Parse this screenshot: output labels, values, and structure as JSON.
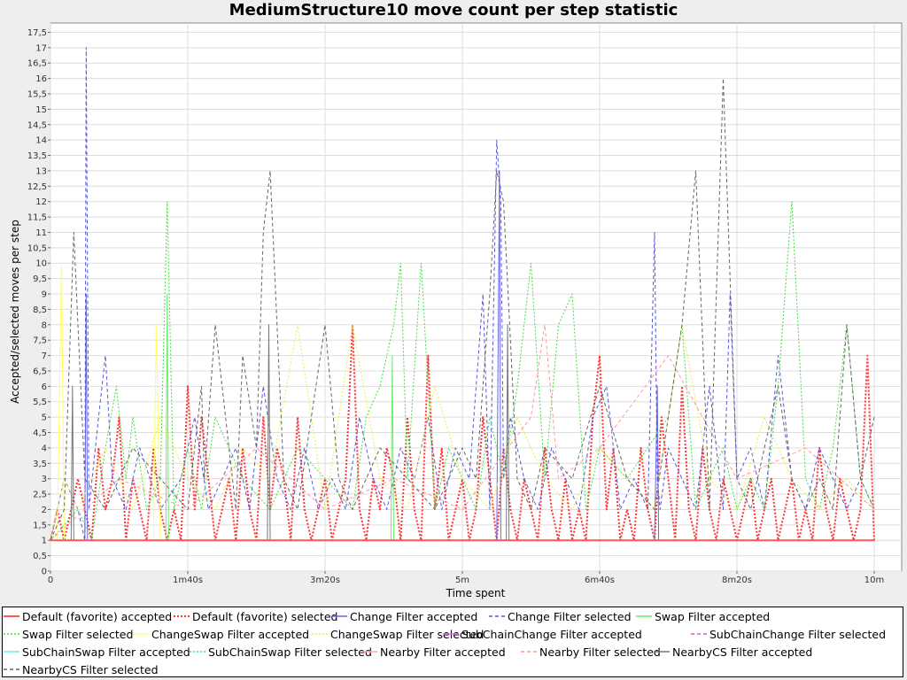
{
  "chart_data": {
    "type": "line",
    "title": "MediumStructure10 move count per step statistic",
    "xlabel": "Time spent",
    "ylabel": "Accepted/selected moves per step",
    "x_unit": "seconds",
    "xlim": [
      0,
      620
    ],
    "ylim": [
      0,
      17.8
    ],
    "x_ticks": [
      {
        "value": 0,
        "label": "0"
      },
      {
        "value": 100,
        "label": "1m40s"
      },
      {
        "value": 200,
        "label": "3m20s"
      },
      {
        "value": 300,
        "label": "5m"
      },
      {
        "value": 400,
        "label": "6m40s"
      },
      {
        "value": 500,
        "label": "8m20s"
      },
      {
        "value": 600,
        "label": "10m"
      }
    ],
    "y_ticks": [
      "0",
      "0,5",
      "1",
      "1,5",
      "2",
      "2,5",
      "3",
      "3,5",
      "4",
      "4,5",
      "5",
      "5,5",
      "6",
      "6,5",
      "7",
      "7,5",
      "8",
      "8,5",
      "9",
      "9,5",
      "10",
      "10,5",
      "11",
      "11,5",
      "12",
      "12,5",
      "13",
      "13,5",
      "14",
      "14,5",
      "15",
      "15,5",
      "16",
      "16,5",
      "17",
      "17,5"
    ],
    "grid": true,
    "legend_position": "bottom",
    "series": [
      {
        "name": "Default (favorite) accepted",
        "color": "#ff5555",
        "dash": "solid",
        "width": 2,
        "x": [
          0,
          600
        ],
        "y": [
          1,
          1
        ]
      },
      {
        "name": "Default (favorite) selected",
        "color": "#ff3333",
        "dash": "dotted",
        "width": 2,
        "x": [
          0,
          5,
          10,
          15,
          20,
          25,
          30,
          35,
          40,
          45,
          50,
          55,
          60,
          65,
          70,
          75,
          80,
          85,
          90,
          95,
          100,
          105,
          110,
          115,
          120,
          125,
          130,
          135,
          140,
          145,
          150,
          155,
          160,
          165,
          170,
          175,
          180,
          185,
          190,
          195,
          200,
          205,
          210,
          215,
          220,
          225,
          230,
          235,
          240,
          245,
          250,
          255,
          260,
          265,
          270,
          275,
          280,
          285,
          290,
          295,
          300,
          305,
          310,
          315,
          320,
          325,
          330,
          335,
          340,
          345,
          350,
          355,
          360,
          365,
          370,
          375,
          380,
          385,
          390,
          395,
          400,
          405,
          410,
          415,
          420,
          425,
          430,
          435,
          440,
          445,
          450,
          455,
          460,
          465,
          470,
          475,
          480,
          485,
          490,
          495,
          500,
          505,
          510,
          515,
          520,
          525,
          530,
          535,
          540,
          545,
          550,
          555,
          560,
          565,
          570,
          575,
          580,
          585,
          590,
          595,
          600
        ],
        "y": [
          1,
          2,
          1,
          2,
          3,
          2,
          1,
          4,
          2,
          3,
          5,
          1,
          3,
          2,
          1,
          4,
          2,
          1,
          2,
          1,
          6,
          2,
          5,
          3,
          1,
          2,
          3,
          1,
          4,
          2,
          1,
          5,
          2,
          4,
          3,
          1,
          5,
          2,
          1,
          2,
          3,
          1,
          2,
          3,
          8,
          2,
          1,
          3,
          2,
          4,
          3,
          1,
          5,
          2,
          1,
          7,
          2,
          4,
          1,
          2,
          3,
          1,
          2,
          5,
          3,
          1,
          4,
          2,
          1,
          3,
          2,
          1,
          4,
          2,
          1,
          3,
          1,
          2,
          1,
          5,
          7,
          2,
          4,
          1,
          2,
          1,
          4,
          2,
          1,
          5,
          3,
          1,
          6,
          2,
          1,
          4,
          2,
          1,
          3,
          2,
          1,
          2,
          3,
          1,
          2,
          3,
          1,
          2,
          3,
          1,
          2,
          1,
          4,
          2,
          1,
          3,
          2,
          1,
          2,
          7,
          1
        ]
      },
      {
        "name": "Change Filter accepted",
        "color": "#6666ee",
        "dash": "solid",
        "width": 1,
        "x": [
          0,
          20,
          25,
          26,
          27,
          30,
          85,
          90,
          155,
          160,
          325,
          327,
          328,
          330,
          440,
          442,
          443,
          445,
          600
        ],
        "y": [
          1,
          1,
          1,
          9,
          1,
          1,
          1,
          1,
          1,
          1,
          1,
          13,
          1,
          1,
          1,
          6,
          1,
          1,
          1
        ]
      },
      {
        "name": "Change Filter selected",
        "color": "#5555dd",
        "dash": "dashed",
        "width": 1,
        "x": [
          0,
          10,
          20,
          25,
          26,
          28,
          35,
          40,
          45,
          55,
          65,
          80,
          95,
          105,
          115,
          125,
          135,
          145,
          155,
          165,
          175,
          185,
          195,
          205,
          215,
          225,
          235,
          245,
          255,
          265,
          275,
          285,
          295,
          305,
          315,
          320,
          325,
          328,
          330,
          335,
          345,
          355,
          365,
          375,
          385,
          395,
          405,
          415,
          425,
          435,
          440,
          442,
          444,
          450,
          460,
          470,
          480,
          490,
          495,
          500,
          510,
          520,
          530,
          540,
          550,
          560,
          570,
          580,
          590,
          600
        ],
        "y": [
          1,
          3,
          2,
          1,
          17,
          2,
          5,
          7,
          3,
          2,
          4,
          2,
          3,
          5,
          2,
          3,
          4,
          2,
          6,
          3,
          2,
          4,
          2,
          3,
          2,
          5,
          3,
          2,
          4,
          3,
          5,
          2,
          4,
          3,
          9,
          2,
          14,
          12,
          3,
          5,
          3,
          2,
          4,
          3,
          2,
          5,
          6,
          2,
          3,
          2,
          11,
          3,
          2,
          4,
          3,
          2,
          6,
          2,
          9,
          3,
          4,
          2,
          7,
          3,
          2,
          4,
          3,
          2,
          3,
          2
        ]
      },
      {
        "name": "Swap Filter accepted",
        "color": "#66ee66",
        "dash": "solid",
        "width": 1,
        "x": [
          0,
          84,
          85,
          86,
          90,
          248,
          249,
          250,
          255,
          600
        ],
        "y": [
          1,
          1,
          9,
          1,
          1,
          1,
          7,
          1,
          1,
          1
        ]
      },
      {
        "name": "Swap Filter selected",
        "color": "#44dd44",
        "dash": "dotted",
        "width": 1,
        "x": [
          0,
          20,
          30,
          40,
          48,
          55,
          60,
          70,
          80,
          85,
          90,
          100,
          110,
          120,
          140,
          160,
          180,
          200,
          220,
          230,
          240,
          250,
          255,
          260,
          270,
          280,
          290,
          300,
          310,
          320,
          330,
          340,
          350,
          360,
          370,
          380,
          390,
          400,
          420,
          450,
          460,
          470,
          480,
          490,
          500,
          510,
          520,
          530,
          540,
          550,
          560,
          570,
          580,
          590,
          600
        ],
        "y": [
          1,
          2,
          1,
          4,
          6,
          3,
          5,
          2,
          3,
          12,
          2,
          4,
          2,
          5,
          3,
          2,
          4,
          3,
          2,
          5,
          6,
          8,
          10,
          3,
          10,
          2,
          4,
          3,
          2,
          5,
          3,
          6,
          10,
          3,
          8,
          9,
          2,
          4,
          3,
          5,
          8,
          2,
          3,
          4,
          2,
          3,
          2,
          6,
          12,
          3,
          2,
          4,
          8,
          3,
          2
        ]
      },
      {
        "name": "ChangeSwap Filter accepted",
        "color": "#ffff66",
        "dash": "solid",
        "width": 1,
        "x": [
          0,
          5,
          8,
          10,
          75,
          77,
          80,
          600
        ],
        "y": [
          1,
          1,
          10,
          1,
          1,
          8,
          1,
          1
        ]
      },
      {
        "name": "ChangeSwap Filter selected",
        "color": "#eeee44",
        "dash": "dotted",
        "width": 1,
        "x": [
          0,
          10,
          20,
          40,
          60,
          80,
          100,
          120,
          140,
          160,
          180,
          200,
          220,
          240,
          260,
          280,
          300,
          320,
          340,
          360,
          380,
          400,
          420,
          440,
          460,
          480,
          500,
          520,
          540,
          560,
          580,
          600
        ],
        "y": [
          1,
          3,
          2,
          4,
          2,
          5,
          3,
          2,
          4,
          3,
          8,
          2,
          8,
          3,
          2,
          6,
          3,
          2,
          5,
          3,
          2,
          4,
          3,
          2,
          8,
          3,
          2,
          5,
          3,
          2,
          3,
          2
        ]
      },
      {
        "name": "SubChainChange Filter accepted",
        "color": "#ee66ee",
        "dash": "solid",
        "width": 1,
        "x": [
          0,
          600
        ],
        "y": [
          1,
          1
        ]
      },
      {
        "name": "SubChainChange Filter selected",
        "color": "#cc66cc",
        "dash": "dashed",
        "width": 1,
        "x": [
          0,
          600
        ],
        "y": [
          1,
          1
        ]
      },
      {
        "name": "SubChainSwap Filter accepted",
        "color": "#66eeee",
        "dash": "solid",
        "width": 1,
        "x": [
          0,
          600
        ],
        "y": [
          1,
          1
        ]
      },
      {
        "name": "SubChainSwap Filter selected",
        "color": "#44cccc",
        "dash": "dotted",
        "width": 1,
        "x": [
          0,
          600
        ],
        "y": [
          1,
          1
        ]
      },
      {
        "name": "Nearby Filter accepted",
        "color": "#ffaaaa",
        "dash": "solid",
        "width": 1,
        "x": [
          0,
          600
        ],
        "y": [
          1,
          1
        ]
      },
      {
        "name": "Nearby Filter selected",
        "color": "#ff9999",
        "dash": "dashed",
        "width": 1,
        "x": [
          0,
          50,
          100,
          150,
          200,
          250,
          300,
          350,
          360,
          370,
          400,
          450,
          500,
          550,
          600
        ],
        "y": [
          1,
          3,
          2,
          4,
          2,
          3,
          2,
          5,
          8,
          3,
          4,
          7,
          3,
          4,
          2
        ]
      },
      {
        "name": "NearbyCS Filter accepted",
        "color": "#777777",
        "dash": "solid",
        "width": 1,
        "x": [
          0,
          15,
          16,
          17,
          150,
          158,
          159,
          160,
          320,
          332,
          333,
          334,
          600
        ],
        "y": [
          1,
          1,
          6,
          1,
          1,
          1,
          8,
          1,
          1,
          1,
          8,
          1,
          1
        ]
      },
      {
        "name": "NearbyCS Filter selected",
        "color": "#666666",
        "dash": "dashed",
        "width": 1,
        "x": [
          0,
          10,
          17,
          25,
          40,
          60,
          80,
          100,
          110,
          112,
          120,
          135,
          140,
          150,
          155,
          160,
          170,
          180,
          190,
          200,
          210,
          220,
          240,
          260,
          280,
          300,
          310,
          320,
          325,
          330,
          340,
          350,
          360,
          380,
          400,
          420,
          440,
          460,
          470,
          480,
          490,
          500,
          510,
          520,
          530,
          540,
          550,
          560,
          570,
          580,
          590,
          600
        ],
        "y": [
          1,
          2,
          11,
          3,
          2,
          4,
          3,
          2,
          6,
          3,
          8,
          2,
          7,
          4,
          11,
          13,
          3,
          2,
          5,
          8,
          3,
          2,
          4,
          3,
          2,
          4,
          3,
          9,
          13,
          12,
          3,
          2,
          4,
          3,
          6,
          3,
          2,
          8,
          13,
          2,
          16,
          3,
          2,
          4,
          6,
          3,
          2,
          3,
          2,
          8,
          3,
          5
        ]
      }
    ]
  }
}
